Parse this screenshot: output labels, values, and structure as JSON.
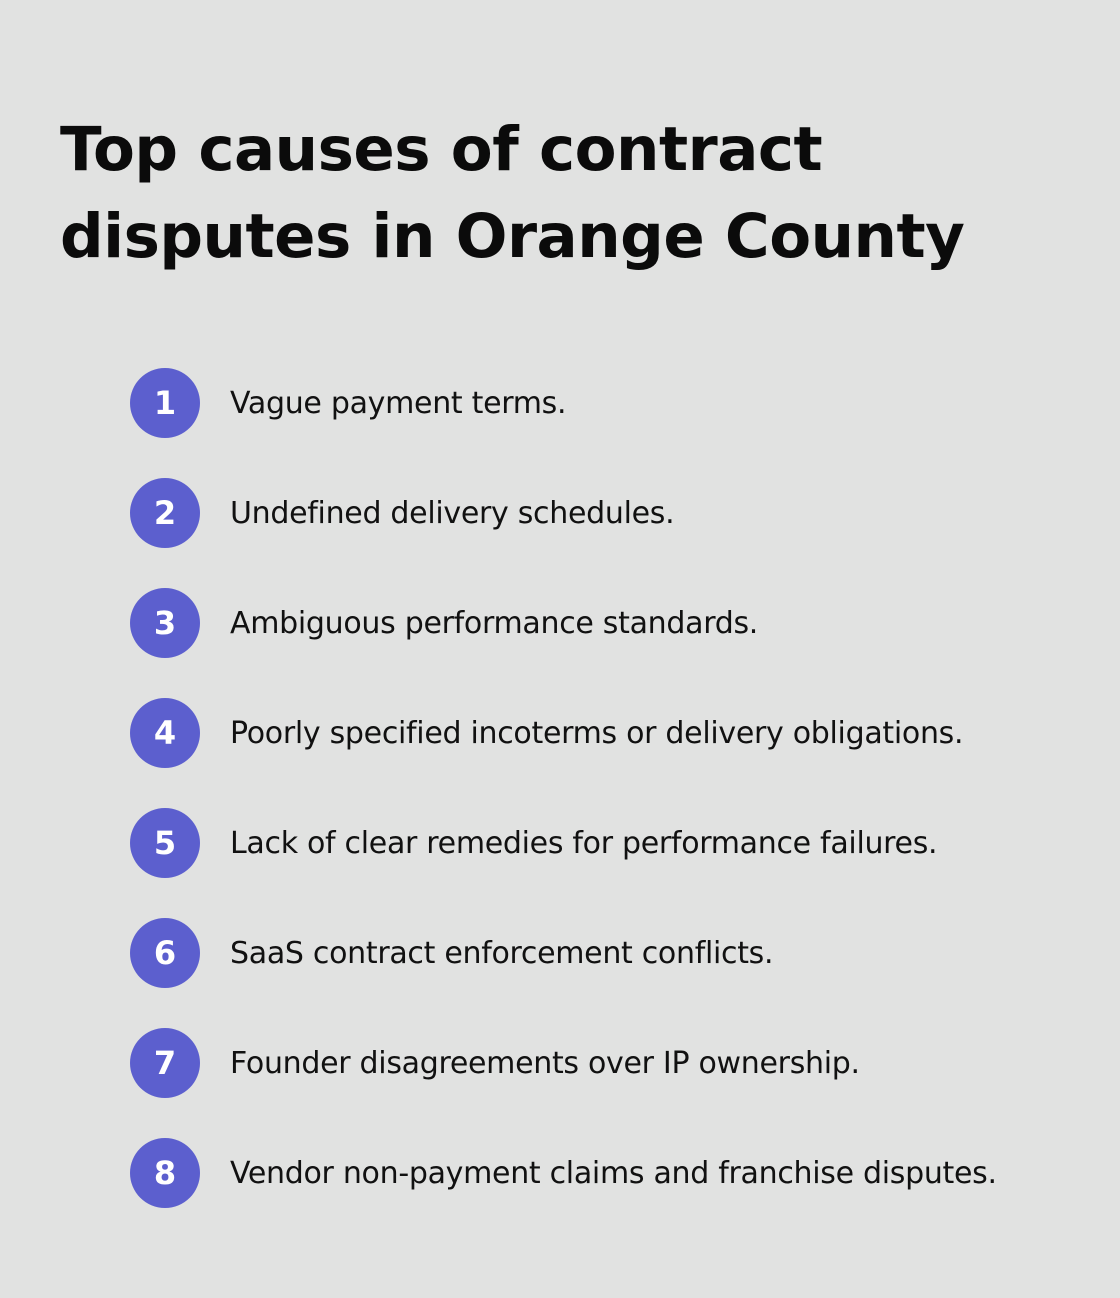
{
  "title_line1": "Top causes of contract",
  "title_line2": "disputes in Orange County",
  "items": [
    {
      "number": "1",
      "text": "Vague payment terms."
    },
    {
      "number": "2",
      "text": "Undefined delivery schedules."
    },
    {
      "number": "3",
      "text": "Ambiguous performance standards."
    },
    {
      "number": "4",
      "text": "Poorly specified incoterms or delivery obligations."
    },
    {
      "number": "5",
      "text": "Lack of clear remedies for performance failures."
    },
    {
      "number": "6",
      "text": "SaaS contract enforcement conflicts."
    },
    {
      "number": "7",
      "text": "Founder disagreements over IP ownership."
    },
    {
      "number": "8",
      "text": "Vendor non-payment claims and franchise disputes."
    }
  ],
  "colors": {
    "background": "#e1e2e1",
    "badge": "#5c5fce",
    "text": "#111111"
  }
}
